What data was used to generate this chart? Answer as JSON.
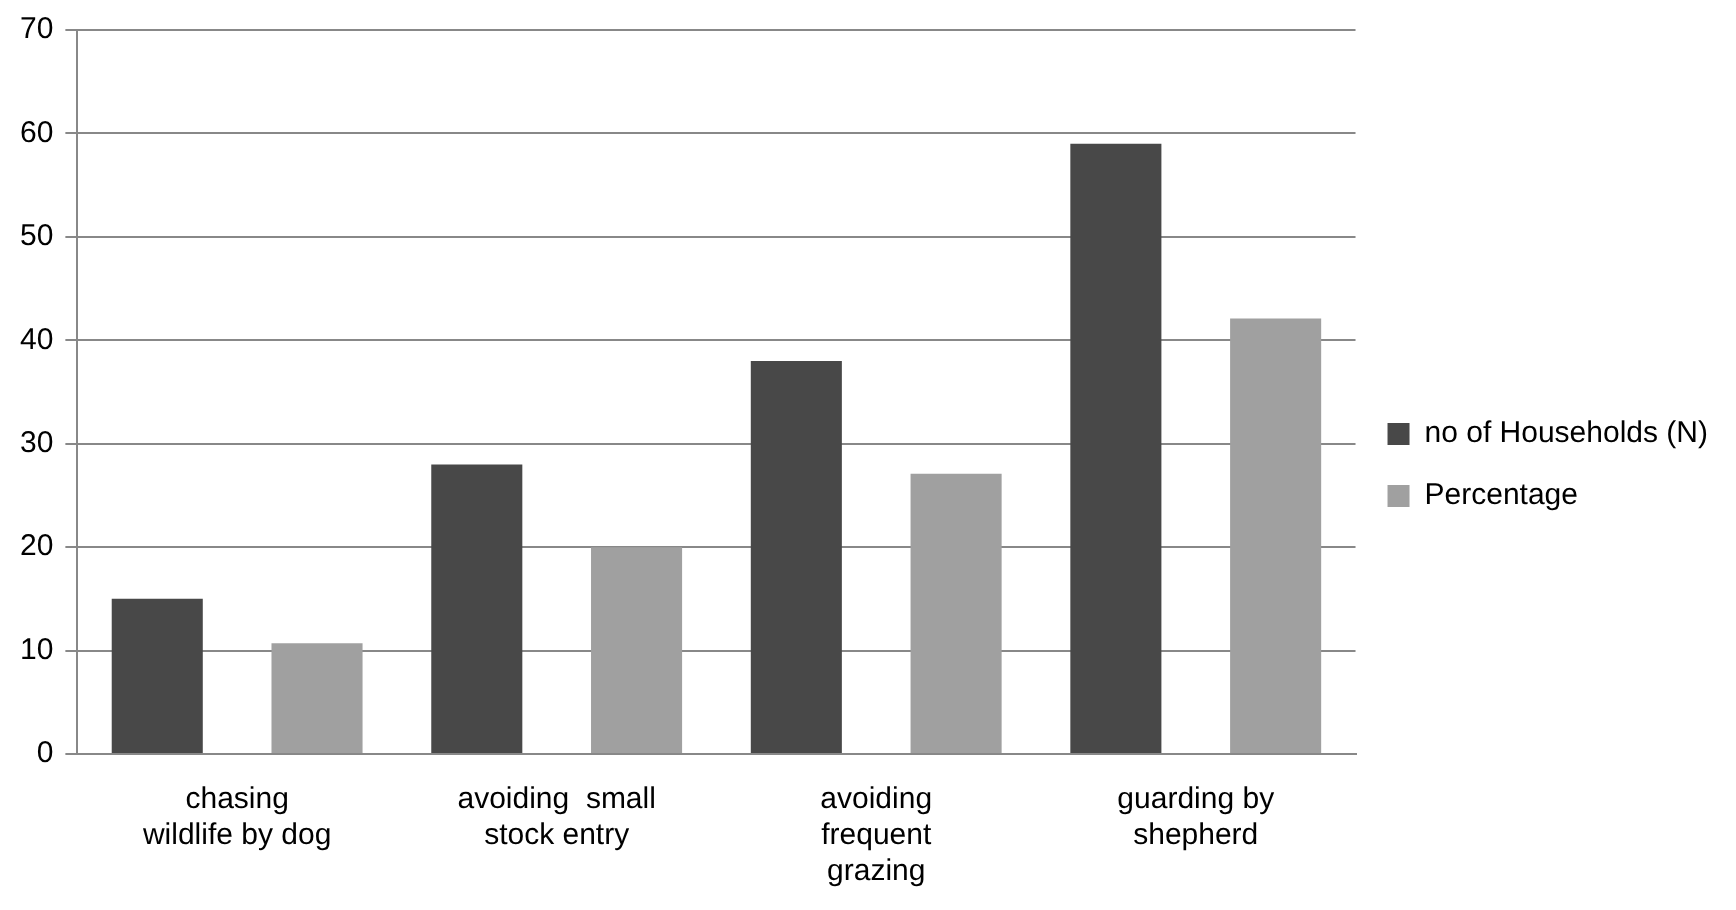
{
  "chart_data": {
    "type": "bar",
    "categories": [
      "chasing\nwildlife by dog",
      "avoiding  small\nstock entry",
      "avoiding\nfrequent\ngrazing",
      "guarding by\nshepherd"
    ],
    "series": [
      {
        "name": "no of Households (N)",
        "color": "#484848",
        "values": [
          15,
          28,
          38,
          59
        ]
      },
      {
        "name": "Percentage",
        "color": "#a0a0a0",
        "values": [
          10.7,
          20,
          27.1,
          42.1
        ]
      }
    ],
    "ylim": [
      0,
      70
    ],
    "yticks": [
      0,
      10,
      20,
      30,
      40,
      50,
      60,
      70
    ],
    "grid": "y",
    "legend": "right"
  }
}
